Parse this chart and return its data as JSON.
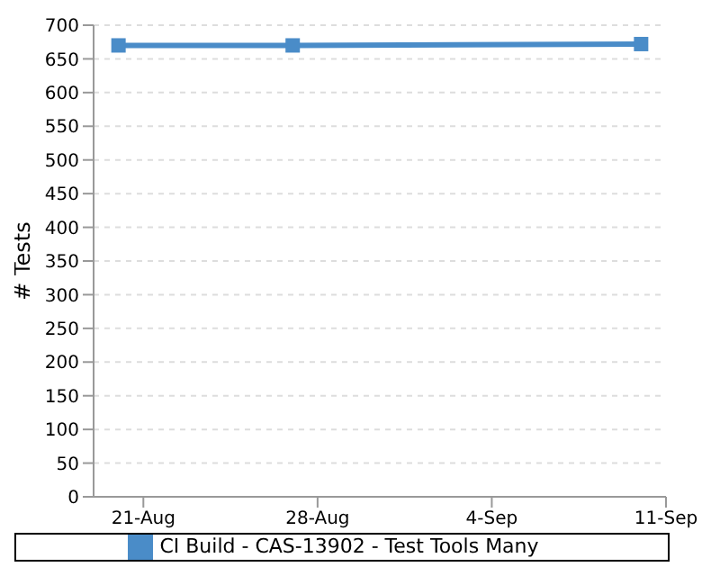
{
  "chart_data": {
    "type": "line",
    "ylabel": "# Tests",
    "x": [
      "--08-20",
      "--08-27",
      "--09-10"
    ],
    "series": [
      {
        "name": "CI Build - CAS-13902 - Test Tools Many",
        "color": "#4a8cc8",
        "values": [
          670,
          670,
          672
        ]
      }
    ],
    "xlim": [
      "--08-19",
      "--09-11"
    ],
    "xticks": [
      {
        "value": "--08-21",
        "label": "21-Aug"
      },
      {
        "value": "--08-28",
        "label": "28-Aug"
      },
      {
        "value": "--09-04",
        "label": "4-Sep"
      },
      {
        "value": "--09-11",
        "label": "11-Sep"
      }
    ],
    "ylim": [
      0,
      700
    ],
    "yticks": [
      0,
      50,
      100,
      150,
      200,
      250,
      300,
      350,
      400,
      450,
      500,
      550,
      600,
      650,
      700
    ],
    "grid": "y",
    "legend": "bottom",
    "marker": "square",
    "line_style": "solid"
  }
}
